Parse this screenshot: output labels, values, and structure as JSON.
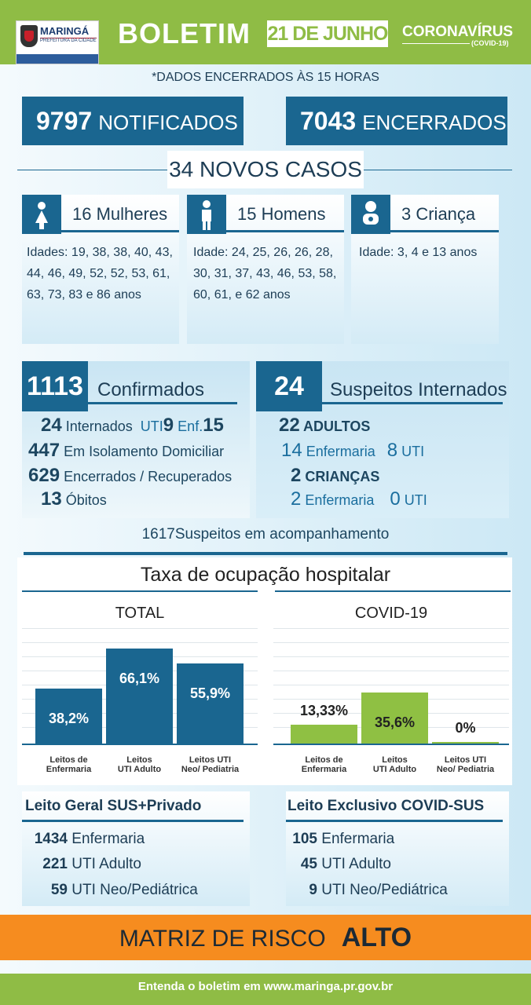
{
  "header": {
    "city": "MARINGÁ",
    "city_sub": "PREFEITURA DA CIDADE",
    "title": "BOLETIM",
    "date": "21 DE JUNHO",
    "topic": "CORONAVÍRUS",
    "topic_sub": "(COVID-19)"
  },
  "note": "*DADOS ENCERRADOS ÀS 15 HORAS",
  "totals": {
    "notificados_num": "9797",
    "notificados_label": "NOTIFICADOS",
    "encerrados_num": "7043",
    "encerrados_label": "ENCERRADOS"
  },
  "novos_casos": "34 NOVOS CASOS",
  "groups": [
    {
      "title": "16 Mulheres",
      "icon": "woman-icon",
      "text": [
        "Idades: 19, 38, 38, 40, 43,",
        "44, 46, 49, 52, 52, 53, 61,",
        "63, 73, 83 e 86 anos"
      ]
    },
    {
      "title": "15 Homens",
      "icon": "man-icon",
      "text": [
        "Idade: 24, 25, 26, 26, 28,",
        "30, 31, 37, 43, 46, 53, 58,",
        "60, 61, e 62 anos"
      ]
    },
    {
      "title": "3 Criança",
      "icon": "baby-icon",
      "text": [
        "Idade: 3, 4 e 13 anos"
      ]
    }
  ],
  "confirmados": {
    "num": "1113",
    "label": "Confirmados",
    "internados_num": "24",
    "internados_label": "Internados",
    "uti_label": "UTI",
    "uti_num": "9",
    "enf_label": "Enf.",
    "enf_num": "15",
    "isolamento_num": "447",
    "isolamento_label": "Em Isolamento Domiciliar",
    "recuperados_num": "629",
    "recuperados_label": "Encerrados / Recuperados",
    "obitos_num": "13",
    "obitos_label": "Óbitos"
  },
  "suspeitos": {
    "num": "24",
    "label": "Suspeitos Internados",
    "adultos_num": "22",
    "adultos_label": "ADULTOS",
    "adultos_enf_num": "14",
    "enf_label": "Enfermaria",
    "adultos_uti_num": "8",
    "uti_label": "UTI",
    "criancas_num": "2",
    "criancas_label": "CRIANÇAS",
    "criancas_enf_num": "2",
    "criancas_uti_num": "0"
  },
  "acompanhamento": "1617Suspeitos em acompanhamento",
  "ocupacao_title": "Taxa de ocupação hospitalar",
  "chart_data": [
    {
      "type": "bar",
      "title": "TOTAL",
      "categories": [
        "Leitos de Enfermaria",
        "Leitos UTI Adulto",
        "Leitos UTI Neo/ Pediatria"
      ],
      "cat_lines": [
        [
          "Leitos de",
          "Enfermaria"
        ],
        [
          "Leitos",
          "UTI Adulto"
        ],
        [
          "Leitos UTI",
          "Neo/ Pediatria"
        ]
      ],
      "values": [
        38.2,
        66.1,
        55.9
      ],
      "labels": [
        "38,2%",
        "66,1%",
        "55,9%"
      ],
      "ylim": [
        0,
        100
      ],
      "color": "#1a6690"
    },
    {
      "type": "bar",
      "title": "COVID-19",
      "categories": [
        "Leitos de Enfermaria",
        "Leitos UTI Adulto",
        "Leitos UTI Neo/ Pediatria"
      ],
      "cat_lines": [
        [
          "Leitos de",
          "Enfermaria"
        ],
        [
          "Leitos",
          "UTI Adulto"
        ],
        [
          "Leitos UTI",
          "Neo/ Pediatria"
        ]
      ],
      "values": [
        13.33,
        35.6,
        0
      ],
      "labels": [
        "13,33%",
        "35,6%",
        "0%"
      ],
      "ylim": [
        0,
        100
      ],
      "color": "#8fc043"
    }
  ],
  "leitos": [
    {
      "title": "Leito Geral SUS+Privado",
      "rows": [
        {
          "num": "1434",
          "label": "Enfermaria"
        },
        {
          "num": "221",
          "label": "UTI Adulto"
        },
        {
          "num": "59",
          "label": "UTI Neo/Pediátrica"
        }
      ]
    },
    {
      "title": "Leito Exclusivo COVID-SUS",
      "rows": [
        {
          "num": "105",
          "label": "Enfermaria"
        },
        {
          "num": "45",
          "label": "UTI Adulto"
        },
        {
          "num": "9",
          "label": "UTI Neo/Pediátrica"
        }
      ]
    }
  ],
  "risco": {
    "label": "MATRIZ DE RISCO",
    "level": "ALTO"
  },
  "footer": "Entenda o boletim em www.maringa.pr.gov.br"
}
